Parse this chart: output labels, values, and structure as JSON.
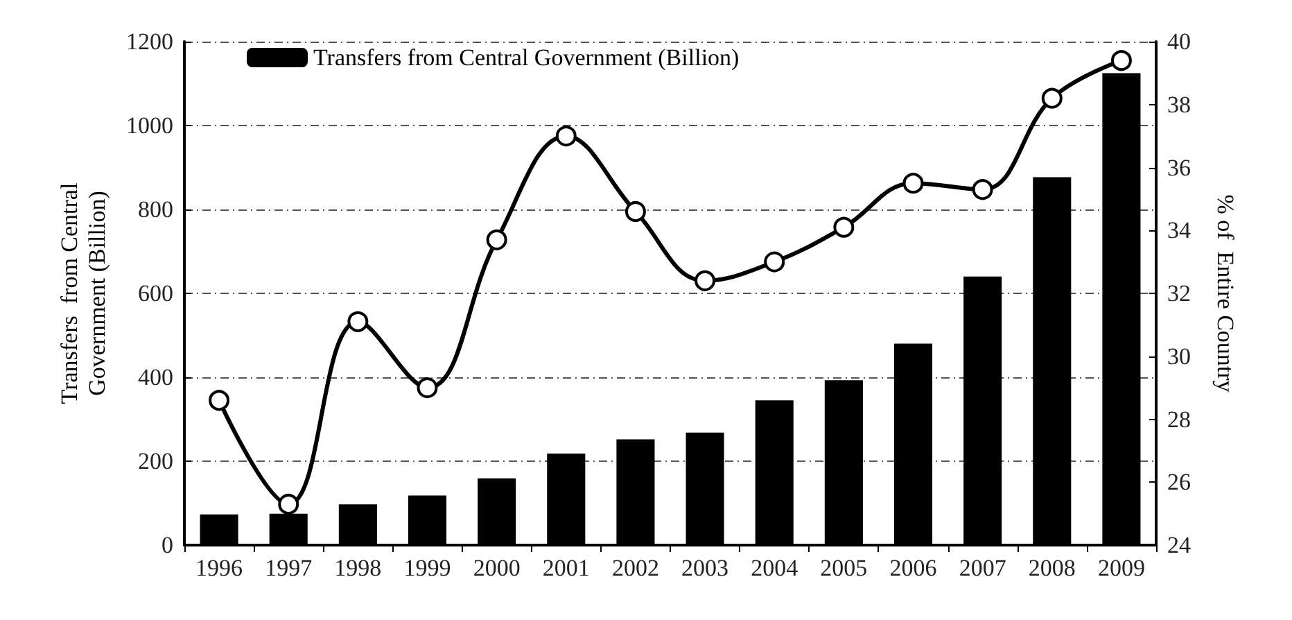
{
  "chart_data": {
    "type": "bar",
    "categories": [
      "1996",
      "1997",
      "1998",
      "1999",
      "2000",
      "2001",
      "2002",
      "2003",
      "2004",
      "2005",
      "2006",
      "2007",
      "2008",
      "2009"
    ],
    "ylabel": "Transfers  from Central\nGovernment (Billion)",
    "y2label": "% of  Entire Country",
    "ylim": [
      0,
      1200
    ],
    "yticks": [
      0,
      200,
      400,
      600,
      800,
      1000,
      1200
    ],
    "y2lim": [
      24,
      40
    ],
    "y2ticks": [
      24,
      26,
      28,
      30,
      32,
      34,
      36,
      38,
      40
    ],
    "grid": "y",
    "legend": "top left",
    "series": [
      {
        "name": "Transfers from Central Government (Billion)",
        "color": "#000000",
        "values": [
          73,
          75,
          97,
          118,
          159,
          218,
          252,
          268,
          345,
          393,
          480,
          640,
          877,
          1125
        ]
      },
      {
        "type": "line",
        "axis": "y2",
        "color": "#000000",
        "marker": "circle",
        "line_style": "solid",
        "values": [
          28.6,
          25.3,
          31.1,
          29.0,
          33.7,
          37.0,
          34.6,
          32.4,
          33.0,
          34.1,
          35.5,
          35.3,
          38.2,
          39.4
        ]
      }
    ]
  }
}
